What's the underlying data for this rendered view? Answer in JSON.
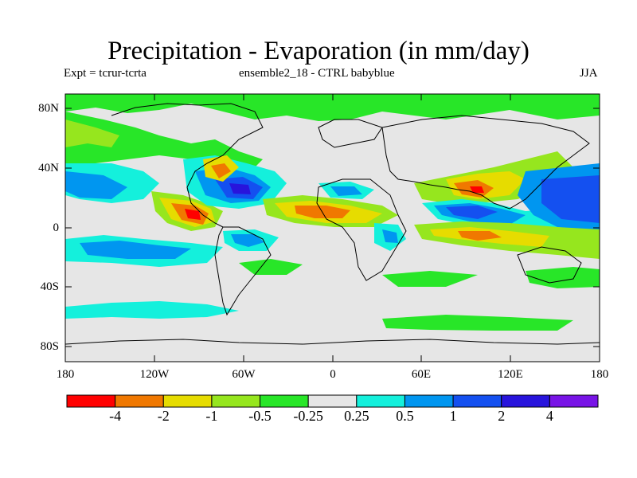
{
  "title": "Precipitation - Evaporation (in mm/day)",
  "subtitle_left": "Expt = tcrur-tcrta",
  "subtitle_center": "ensemble2_18 - CTRL babyblue",
  "subtitle_right": "JJA",
  "lat_labels": [
    "80N",
    "40N",
    "0",
    "40S",
    "80S"
  ],
  "lon_labels": [
    "180",
    "120W",
    "60W",
    "0",
    "60E",
    "120E",
    "180"
  ],
  "colorbar": {
    "colors": [
      "#ff0000",
      "#f07800",
      "#e6dc00",
      "#96e61e",
      "#28e628",
      "#e6e6e6",
      "#14f0dc",
      "#0096f0",
      "#1450f0",
      "#2814dc",
      "#7814e6"
    ],
    "labels": [
      "-4",
      "-2",
      "-1",
      "-0.5",
      "-0.25",
      "0.25",
      "0.5",
      "1",
      "2",
      "4"
    ]
  }
}
